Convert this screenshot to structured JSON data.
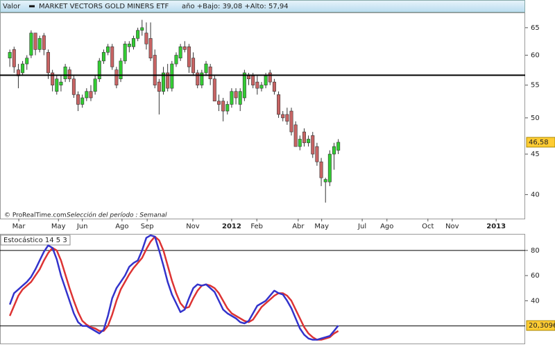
{
  "chart_data": [
    {
      "type": "candlestick",
      "header": "Valor",
      "title": "MARKET VECTORS GOLD MINERS ETF",
      "subtitle": "año +Bajo: 39,08 +Alto: 57,94",
      "source": "© ProRealTime.com",
      "period": "Selección del período : Semanal",
      "x": [
        1,
        2,
        3,
        4,
        5,
        6,
        7,
        8,
        9,
        10,
        11,
        12,
        13,
        14,
        15,
        16,
        17,
        18,
        19,
        20,
        21,
        22,
        23,
        24,
        25,
        26,
        27,
        28,
        29,
        30,
        31,
        32,
        33,
        34,
        35,
        36,
        37,
        38,
        39,
        40,
        41,
        42,
        43,
        44,
        45,
        46,
        47,
        48,
        49,
        50,
        51,
        52,
        53,
        54,
        55,
        56,
        57,
        58,
        59,
        60,
        61,
        62,
        63,
        64,
        65,
        66,
        67,
        68,
        69,
        70,
        71,
        72,
        73,
        74,
        75,
        76,
        77,
        78
      ],
      "open": [
        59.5,
        61,
        57.5,
        57,
        58.5,
        60,
        64,
        61,
        63.5,
        60.5,
        57,
        54,
        55,
        56,
        57.5,
        56,
        53.5,
        52,
        53,
        54,
        54,
        56,
        59,
        60.5,
        61.5,
        57.5,
        56,
        59,
        61.5,
        61.5,
        63,
        64.5,
        64,
        63,
        60,
        55.5,
        54,
        57,
        54.5,
        58.5,
        59.5,
        61.5,
        61.5,
        59.5,
        57,
        55,
        57,
        58,
        56,
        52.5,
        52.5,
        51,
        52,
        54,
        52,
        53,
        56.5,
        56.5,
        55.5,
        54.5,
        55,
        57,
        55.5,
        53.5,
        50.5,
        50.5,
        51,
        49,
        46,
        48,
        46.5,
        47.5,
        46,
        44,
        41.5,
        41.5,
        45,
        45.5
      ],
      "high": [
        61,
        61.5,
        58.5,
        59,
        60,
        64.5,
        64,
        63.5,
        64,
        61,
        57.5,
        56.5,
        56.5,
        58.5,
        58,
        56.5,
        54,
        53.5,
        54.5,
        55,
        56.5,
        59.5,
        61,
        62,
        62,
        58,
        59.5,
        62.5,
        62.5,
        63.5,
        65,
        66.5,
        66,
        66,
        61,
        56,
        58,
        58.5,
        59,
        60.5,
        62,
        62.5,
        62,
        60.5,
        57.5,
        57.5,
        59,
        58.5,
        56.5,
        53.5,
        53,
        52.5,
        54.5,
        54.5,
        54.5,
        57.5,
        57,
        57,
        56.5,
        55.5,
        57,
        57.5,
        56,
        54,
        51,
        51.5,
        51.5,
        49.5,
        47.5,
        48.5,
        47.5,
        48,
        46.5,
        44.5,
        42,
        45.5,
        46.5,
        47
      ],
      "low": [
        58,
        57,
        54.5,
        56.5,
        57.5,
        59.5,
        60,
        60.5,
        60,
        56,
        54,
        53.5,
        54,
        55.5,
        55.5,
        53,
        51,
        51.5,
        52.5,
        52.5,
        53.5,
        55.5,
        58.5,
        60,
        57.5,
        54.5,
        55.5,
        58.5,
        60.5,
        61,
        62.5,
        63.5,
        61,
        59,
        54.5,
        50.5,
        53.5,
        54,
        54,
        58,
        59,
        60.5,
        57,
        56.5,
        54.5,
        54.5,
        56.5,
        55,
        52.5,
        51,
        49.5,
        50.5,
        51.5,
        52,
        51,
        52.5,
        55,
        54.5,
        53.5,
        54,
        54.5,
        55,
        53.5,
        50,
        49.5,
        49,
        47.5,
        46,
        45.5,
        46,
        46,
        44.5,
        43.5,
        41,
        39.08,
        41,
        43,
        45
      ],
      "close": [
        60.5,
        58,
        56.5,
        58.5,
        59.5,
        64,
        61,
        63,
        61,
        57,
        55,
        56,
        55.5,
        58,
        56,
        53.5,
        52,
        53,
        54,
        53,
        56,
        59,
        60.5,
        61.5,
        58,
        55,
        59,
        62,
        62,
        63,
        64.5,
        65,
        62,
        59.5,
        55,
        54,
        57,
        54.5,
        58.5,
        60,
        61.5,
        61,
        58,
        57,
        55,
        57,
        58.5,
        56,
        52.5,
        52,
        51,
        52,
        54,
        53,
        54,
        57,
        56,
        55,
        54.5,
        55,
        56.5,
        55.5,
        54,
        50.5,
        50,
        49.5,
        48,
        46,
        47,
        46.5,
        47,
        45,
        44,
        42,
        41.8,
        45,
        46,
        46.58
      ],
      "series": [
        {
          "name": "MARKET VECTORS GOLD MINERS ETF",
          "color": "#33cc33"
        }
      ],
      "up_color": "#33cc33",
      "down_color": "#c86464",
      "hline": 56.6,
      "last_tick": {
        "value": 46.58,
        "label": "46,58"
      },
      "log_scale": true,
      "ylim": [
        37.3,
        67.8
      ],
      "yticks": [
        40,
        45,
        50,
        55,
        60,
        65
      ],
      "xlim": [
        -1.3,
        121.8
      ],
      "xticks": [
        {
          "value": 3.1,
          "label": "Mar"
        },
        {
          "value": 12.4,
          "label": "May"
        },
        {
          "value": 18,
          "label": "Jun"
        },
        {
          "value": 27.3,
          "label": "Ago"
        },
        {
          "value": 33.2,
          "label": "Sep"
        },
        {
          "value": 43.9,
          "label": "Nov"
        },
        {
          "value": 53,
          "label": "2012"
        },
        {
          "value": 58.9,
          "label": "Feb"
        },
        {
          "value": 68.6,
          "label": "Abr"
        },
        {
          "value": 74.1,
          "label": "May"
        },
        {
          "value": 83.6,
          "label": "Jul"
        },
        {
          "value": 89.4,
          "label": "Ago"
        },
        {
          "value": 99,
          "label": "Oct"
        },
        {
          "value": 104.7,
          "label": "Nov"
        },
        {
          "value": 115,
          "label": "2013"
        }
      ]
    },
    {
      "type": "line",
      "title": "Estocástico 14 5 3",
      "series": [
        {
          "color": "#3333cc",
          "values": [
            37,
            46,
            49,
            52,
            55,
            59,
            65,
            72,
            79,
            84,
            82,
            73,
            60,
            50,
            40,
            30,
            23,
            20,
            20,
            18,
            16,
            14,
            17,
            28,
            42,
            50,
            55,
            60,
            67,
            70,
            72,
            80,
            90,
            92,
            91,
            80,
            68,
            55,
            45,
            38,
            31,
            33,
            42,
            50,
            53,
            52,
            53,
            50,
            47,
            40,
            33,
            30,
            28,
            26,
            23,
            22,
            24,
            30,
            36,
            38,
            40,
            44,
            48,
            46,
            45,
            40,
            34,
            26,
            18,
            13,
            10,
            9,
            9,
            10,
            11,
            12,
            16,
            20.3096
          ]
        },
        {
          "color": "#dd3333",
          "values": [
            28,
            36,
            44,
            49,
            52,
            55,
            60,
            65,
            72,
            78,
            82,
            80,
            72,
            61,
            50,
            40,
            31,
            24,
            21,
            19,
            18,
            16,
            16,
            20,
            29,
            40,
            49,
            55,
            61,
            66,
            70,
            74,
            81,
            87,
            91,
            88,
            80,
            68,
            56,
            46,
            38,
            34,
            35,
            42,
            48,
            52,
            53,
            52,
            50,
            46,
            40,
            34,
            30,
            28,
            26,
            24,
            23,
            25,
            30,
            35,
            38,
            41,
            44,
            46,
            46,
            44,
            40,
            33,
            26,
            19,
            14,
            11,
            9,
            9,
            10,
            11,
            14,
            16
          ]
        }
      ],
      "levels": [
        20,
        80
      ],
      "last_tick": {
        "value": 20.3096,
        "label": "20,3096"
      },
      "ylim": [
        6,
        92.6
      ],
      "yticks": [
        40,
        60,
        80
      ]
    }
  ]
}
